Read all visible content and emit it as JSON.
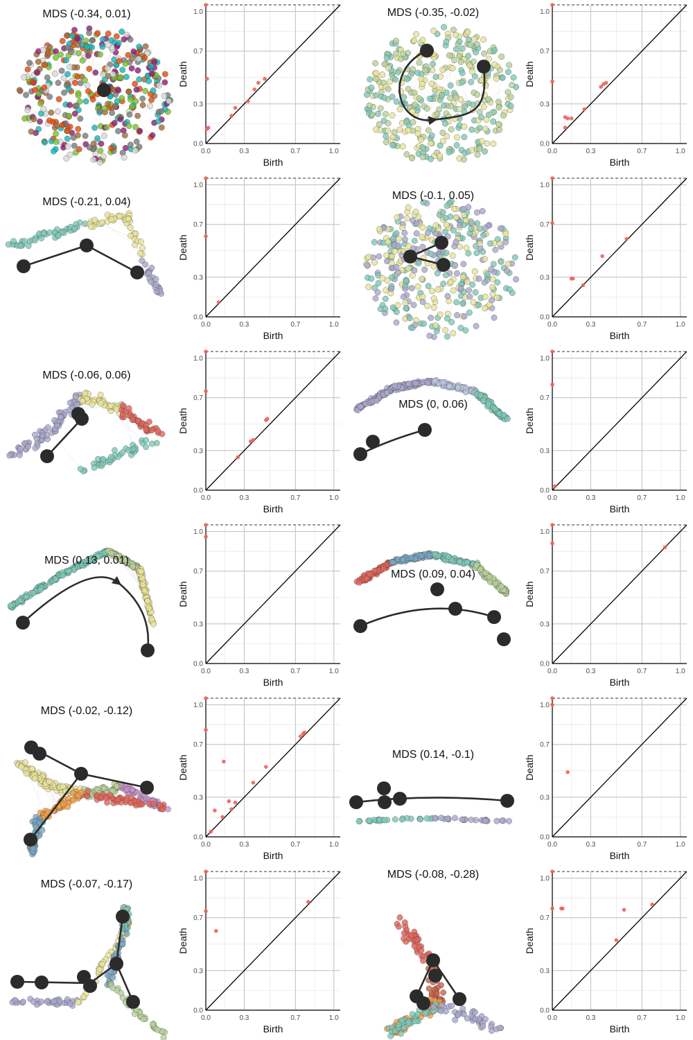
{
  "colors": {
    "persistence_point": "#f0625a",
    "diagonal": "#000000",
    "grid_major": "#c4c4c4",
    "grid_minor": "#e6e6e6",
    "trajectory": "#2b2b2b",
    "edge": "#d9d9d9"
  },
  "axis_labels": {
    "x": "Birth",
    "y": "Death"
  },
  "chart_data": [
    {
      "type": "scatter",
      "title": "MDS (-0.34, 0.01)",
      "graph_palette": [
        "#e34a0a",
        "#a06a3c",
        "#7a7a7a",
        "#7ac12b",
        "#16b5b5",
        "#8f1e74",
        "#d9d9d9"
      ],
      "graph_shape": "blob",
      "trajectory": "hub",
      "persistence": {
        "xlabel": "Birth",
        "ylabel": "Death",
        "xlim": [
          0,
          1.05
        ],
        "ylim": [
          0,
          1.05
        ],
        "xticks": [
          0.0,
          0.3,
          0.7,
          1.0
        ],
        "yticks": [
          0.0,
          0.3,
          0.7,
          1.0
        ],
        "infinite_bar": true,
        "points": [
          [
            0.0,
            1.05
          ],
          [
            0.01,
            0.49
          ],
          [
            0.02,
            0.12
          ],
          [
            0.01,
            0.11
          ],
          [
            0.2,
            0.21
          ],
          [
            0.23,
            0.27
          ],
          [
            0.33,
            0.32
          ],
          [
            0.38,
            0.41
          ],
          [
            0.41,
            0.46
          ],
          [
            0.46,
            0.49
          ]
        ]
      }
    },
    {
      "type": "scatter",
      "title": "MDS (-0.35, -0.02)",
      "graph_palette": [
        "#e8e39a",
        "#b8d19a",
        "#7fc8b8"
      ],
      "graph_shape": "blob",
      "trajectory": "loop",
      "persistence": {
        "xlabel": "Birth",
        "ylabel": "Death",
        "xlim": [
          0,
          1.05
        ],
        "ylim": [
          0,
          1.05
        ],
        "xticks": [
          0.0,
          0.3,
          0.7,
          1.0
        ],
        "yticks": [
          0.0,
          0.3,
          0.7,
          1.0
        ],
        "infinite_bar": true,
        "points": [
          [
            0.0,
            1.05
          ],
          [
            0.0,
            0.47
          ],
          [
            0.1,
            0.2
          ],
          [
            0.12,
            0.19
          ],
          [
            0.15,
            0.19
          ],
          [
            0.1,
            0.12
          ],
          [
            0.25,
            0.26
          ],
          [
            0.38,
            0.43
          ],
          [
            0.4,
            0.45
          ],
          [
            0.42,
            0.46
          ]
        ]
      }
    },
    {
      "type": "scatter",
      "title": "MDS (-0.21, 0.04)",
      "graph_palette": [
        "#7fc8b8",
        "#e8e39a",
        "#a9a8cc"
      ],
      "graph_shape": "arms",
      "trajectory": "two-arms",
      "persistence": {
        "xlabel": "Birth",
        "ylabel": "Death",
        "xlim": [
          0,
          1.05
        ],
        "ylim": [
          0,
          1.05
        ],
        "xticks": [
          0.0,
          0.3,
          0.7,
          1.0
        ],
        "yticks": [
          0.0,
          0.3,
          0.7,
          1.0
        ],
        "infinite_bar": true,
        "points": [
          [
            0.0,
            1.05
          ],
          [
            0.0,
            0.61
          ],
          [
            0.1,
            0.11
          ]
        ]
      }
    },
    {
      "type": "scatter",
      "title": "MDS (-0.1, 0.05)",
      "graph_palette": [
        "#7fc8b8",
        "#e8e39a",
        "#a9a8cc"
      ],
      "graph_shape": "blob",
      "trajectory": "triangle",
      "persistence": {
        "xlabel": "Birth",
        "ylabel": "Death",
        "xlim": [
          0,
          1.05
        ],
        "ylim": [
          0,
          1.05
        ],
        "xticks": [
          0.0,
          0.3,
          0.7,
          1.0
        ],
        "yticks": [
          0.0,
          0.3,
          0.7,
          1.0
        ],
        "infinite_bar": true,
        "points": [
          [
            0.0,
            1.05
          ],
          [
            0.0,
            0.71
          ],
          [
            0.15,
            0.29
          ],
          [
            0.16,
            0.29
          ],
          [
            0.24,
            0.24
          ],
          [
            0.39,
            0.46
          ],
          [
            0.58,
            0.59
          ]
        ]
      }
    },
    {
      "type": "scatter",
      "title": "MDS (-0.06, 0.06)",
      "graph_palette": [
        "#a9a8cc",
        "#e8e39a",
        "#e0655a",
        "#7fc8b8"
      ],
      "graph_shape": "spread",
      "trajectory": "branch",
      "persistence": {
        "xlabel": "Birth",
        "ylabel": "Death",
        "xlim": [
          0,
          1.05
        ],
        "ylim": [
          0,
          1.05
        ],
        "xticks": [
          0.0,
          0.3,
          0.7,
          1.0
        ],
        "yticks": [
          0.0,
          0.3,
          0.7,
          1.0
        ],
        "infinite_bar": true,
        "points": [
          [
            0.0,
            1.05
          ],
          [
            0.0,
            0.75
          ],
          [
            0.25,
            0.25
          ],
          [
            0.35,
            0.37
          ],
          [
            0.37,
            0.38
          ],
          [
            0.47,
            0.53
          ],
          [
            0.48,
            0.54
          ]
        ]
      }
    },
    {
      "type": "scatter",
      "title": "MDS (0, 0.06)",
      "graph_palette": [
        "#a9a8cc",
        "#bcc6e0",
        "#7fc8b8"
      ],
      "graph_shape": "arc",
      "trajectory": "short-arc",
      "persistence": {
        "xlabel": "Birth",
        "ylabel": "Death",
        "xlim": [
          0,
          1.05
        ],
        "ylim": [
          0,
          1.05
        ],
        "xticks": [
          0.0,
          0.3,
          0.7,
          1.0
        ],
        "yticks": [
          0.0,
          0.3,
          0.7,
          1.0
        ],
        "infinite_bar": true,
        "points": [
          [
            0.0,
            1.05
          ],
          [
            0.0,
            0.8
          ],
          [
            0.02,
            0.03
          ]
        ]
      }
    },
    {
      "type": "scatter",
      "title": "MDS (0.13, 0.01)",
      "graph_palette": [
        "#7fc8b8",
        "#b8d19a",
        "#e8e39a"
      ],
      "graph_shape": "arc-high",
      "trajectory": "arc",
      "persistence": {
        "xlabel": "Birth",
        "ylabel": "Death",
        "xlim": [
          0,
          1.05
        ],
        "ylim": [
          0,
          1.05
        ],
        "xticks": [
          0.0,
          0.3,
          0.7,
          1.0
        ],
        "yticks": [
          0.0,
          0.3,
          0.7,
          1.0
        ],
        "infinite_bar": true,
        "points": [
          [
            0.0,
            1.05
          ],
          [
            0.0,
            0.96
          ]
        ]
      }
    },
    {
      "type": "scatter",
      "title": "MDS (0.09, 0.04)",
      "graph_palette": [
        "#e0655a",
        "#7aa6c2",
        "#7fc8b8",
        "#b8d19a",
        "#f0a04b"
      ],
      "graph_shape": "arc",
      "trajectory": "arc-nodes",
      "persistence": {
        "xlabel": "Birth",
        "ylabel": "Death",
        "xlim": [
          0,
          1.05
        ],
        "ylim": [
          0,
          1.05
        ],
        "xticks": [
          0.0,
          0.3,
          0.7,
          1.0
        ],
        "yticks": [
          0.0,
          0.3,
          0.7,
          1.0
        ],
        "infinite_bar": true,
        "points": [
          [
            0.0,
            1.05
          ],
          [
            0.0,
            0.91
          ],
          [
            0.88,
            0.88
          ]
        ]
      }
    },
    {
      "type": "scatter",
      "title": "MDS (-0.02, -0.12)",
      "graph_palette": [
        "#e8e39a",
        "#b8d19a",
        "#c591c4",
        "#e0655a",
        "#f0a04b",
        "#7aa6c2"
      ],
      "graph_shape": "tree",
      "trajectory": "tree",
      "persistence": {
        "xlabel": "Birth",
        "ylabel": "Death",
        "xlim": [
          0,
          1.05
        ],
        "ylim": [
          0,
          1.05
        ],
        "xticks": [
          0.0,
          0.3,
          0.7,
          1.0
        ],
        "yticks": [
          0.0,
          0.3,
          0.7,
          1.0
        ],
        "infinite_bar": true,
        "points": [
          [
            0.0,
            1.05
          ],
          [
            0.0,
            0.81
          ],
          [
            0.04,
            0.04
          ],
          [
            0.07,
            0.2
          ],
          [
            0.13,
            0.15
          ],
          [
            0.14,
            0.57
          ],
          [
            0.18,
            0.27
          ],
          [
            0.2,
            0.21
          ],
          [
            0.23,
            0.26
          ],
          [
            0.37,
            0.41
          ],
          [
            0.47,
            0.53
          ],
          [
            0.74,
            0.76
          ],
          [
            0.76,
            0.78
          ],
          [
            0.77,
            0.79
          ]
        ]
      }
    },
    {
      "type": "scatter",
      "title": "MDS (0.14, -0.1)",
      "graph_palette": [
        "#7fc8b8",
        "#a9a8cc",
        "#e8e39a"
      ],
      "graph_shape": "line",
      "trajectory": "line",
      "persistence": {
        "xlabel": "Birth",
        "ylabel": "Death",
        "xlim": [
          0,
          1.05
        ],
        "ylim": [
          0,
          1.05
        ],
        "xticks": [
          0.0,
          0.3,
          0.7,
          1.0
        ],
        "yticks": [
          0.0,
          0.3,
          0.7,
          1.0
        ],
        "infinite_bar": true,
        "points": [
          [
            0.0,
            1.05
          ],
          [
            0.0,
            1.0
          ],
          [
            0.12,
            0.49
          ]
        ]
      }
    },
    {
      "type": "scatter",
      "title": "MDS (-0.07, -0.17)",
      "graph_palette": [
        "#a9a8cc",
        "#e8e39a",
        "#f0a04b",
        "#7fc8b8",
        "#7aa6c2",
        "#b8d19a"
      ],
      "graph_shape": "tristar",
      "trajectory": "tristar",
      "persistence": {
        "xlabel": "Birth",
        "ylabel": "Death",
        "xlim": [
          0,
          1.05
        ],
        "ylim": [
          0,
          1.05
        ],
        "xticks": [
          0.0,
          0.3,
          0.7,
          1.0
        ],
        "yticks": [
          0.0,
          0.3,
          0.7,
          1.0
        ],
        "infinite_bar": true,
        "points": [
          [
            0.0,
            1.05
          ],
          [
            0.0,
            0.75
          ],
          [
            0.08,
            0.6
          ],
          [
            0.8,
            0.82
          ]
        ]
      }
    },
    {
      "type": "scatter",
      "title": "MDS (-0.08, -0.28)",
      "graph_palette": [
        "#e0655a",
        "#c4644a",
        "#f0a04b",
        "#7fc8b8",
        "#a9a8cc",
        "#b8d19a"
      ],
      "graph_shape": "y-star",
      "trajectory": "y-star",
      "persistence": {
        "xlabel": "Birth",
        "ylabel": "Death",
        "xlim": [
          0,
          1.05
        ],
        "ylim": [
          0,
          1.05
        ],
        "xticks": [
          0.0,
          0.3,
          0.7,
          1.0
        ],
        "yticks": [
          0.0,
          0.3,
          0.7,
          1.0
        ],
        "infinite_bar": true,
        "points": [
          [
            0.0,
            1.05
          ],
          [
            0.0,
            0.77
          ],
          [
            0.07,
            0.77
          ],
          [
            0.08,
            0.77
          ],
          [
            0.5,
            0.53
          ],
          [
            0.56,
            0.76
          ],
          [
            0.78,
            0.8
          ]
        ]
      }
    }
  ]
}
